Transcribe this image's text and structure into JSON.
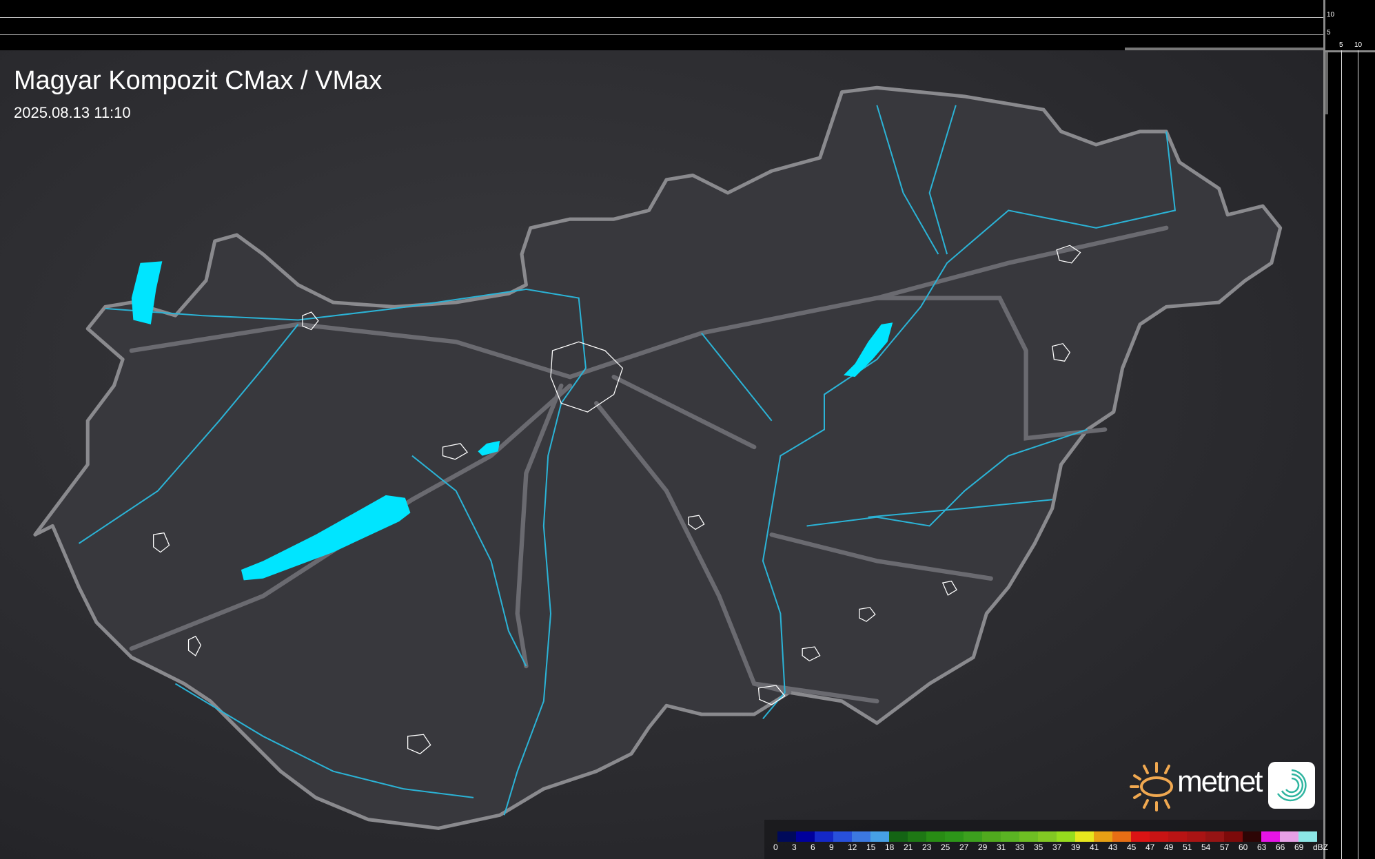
{
  "header": {
    "title": "Magyar Kompozit CMax / VMax",
    "timestamp": "2025.08.13 11:10"
  },
  "profile_axes": {
    "top_labels": [
      "10",
      "5"
    ],
    "side_labels": [
      "5",
      "10"
    ]
  },
  "logo": {
    "brand": "metnet"
  },
  "legend": {
    "unit": "dBZ",
    "items": [
      {
        "label": "0",
        "color": "#000a5a"
      },
      {
        "label": "3",
        "color": "#00009c"
      },
      {
        "label": "6",
        "color": "#1428c8"
      },
      {
        "label": "9",
        "color": "#2850dc"
      },
      {
        "label": "12",
        "color": "#3c78e0"
      },
      {
        "label": "15",
        "color": "#46a0e6"
      },
      {
        "label": "18",
        "color": "#146414"
      },
      {
        "label": "21",
        "color": "#1e7814"
      },
      {
        "label": "23",
        "color": "#288c14"
      },
      {
        "label": "25",
        "color": "#2d9619"
      },
      {
        "label": "27",
        "color": "#3ca01e"
      },
      {
        "label": "29",
        "color": "#50aa1e"
      },
      {
        "label": "31",
        "color": "#5ab423"
      },
      {
        "label": "33",
        "color": "#6ebe23"
      },
      {
        "label": "35",
        "color": "#82c823"
      },
      {
        "label": "37",
        "color": "#96dc1e"
      },
      {
        "label": "39",
        "color": "#e6e61e"
      },
      {
        "label": "41",
        "color": "#e6a014"
      },
      {
        "label": "43",
        "color": "#e66e14"
      },
      {
        "label": "45",
        "color": "#dc1414"
      },
      {
        "label": "47",
        "color": "#c81414"
      },
      {
        "label": "49",
        "color": "#b91414"
      },
      {
        "label": "51",
        "color": "#aa1414"
      },
      {
        "label": "54",
        "color": "#961414"
      },
      {
        "label": "57",
        "color": "#7d0a0a"
      },
      {
        "label": "60",
        "color": "#2d0505"
      },
      {
        "label": "63",
        "color": "#e614e6"
      },
      {
        "label": "66",
        "color": "#e6a0e6"
      },
      {
        "label": "69",
        "color": "#8ce6e6"
      }
    ]
  },
  "colors": {
    "water": "#00e5ff",
    "river": "#2bb3d6",
    "border": "#8a8a8e",
    "country_fill": "#38383d"
  }
}
